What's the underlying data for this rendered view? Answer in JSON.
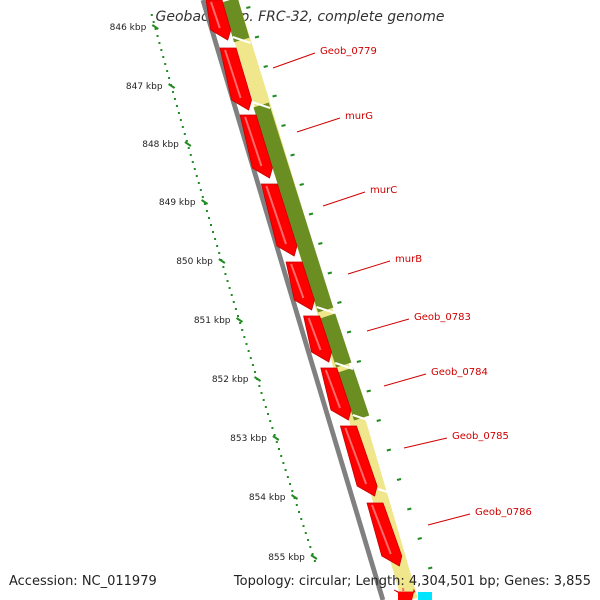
{
  "title": "Geobacter sp. FRC-32, complete genome",
  "footer": {
    "accession": "Accession: NC_011979",
    "stats": "Topology: circular; Length: 4,304,501 bp; Genes: 3,855"
  },
  "ruler": {
    "labels": [
      "846 kbp",
      "847 kbp",
      "848 kbp",
      "849 kbp",
      "850 kbp",
      "851 kbp",
      "852 kbp",
      "853 kbp",
      "854 kbp",
      "855 kbp"
    ]
  },
  "genes": [
    {
      "name": "Geob_0779"
    },
    {
      "name": "murG"
    },
    {
      "name": "murC"
    },
    {
      "name": "murB"
    },
    {
      "name": "Geob_0783"
    },
    {
      "name": "Geob_0784"
    },
    {
      "name": "Geob_0785"
    },
    {
      "name": "Geob_0786"
    }
  ],
  "colors": {
    "cds": "#ff0000",
    "cds_dark": "#c80000",
    "track_green": "#6b8e23",
    "track_yellow": "#f0e68c",
    "ruler": "#228b22",
    "backbone": "#808080",
    "label": "#d00000",
    "cyan": "#00e5ff"
  }
}
